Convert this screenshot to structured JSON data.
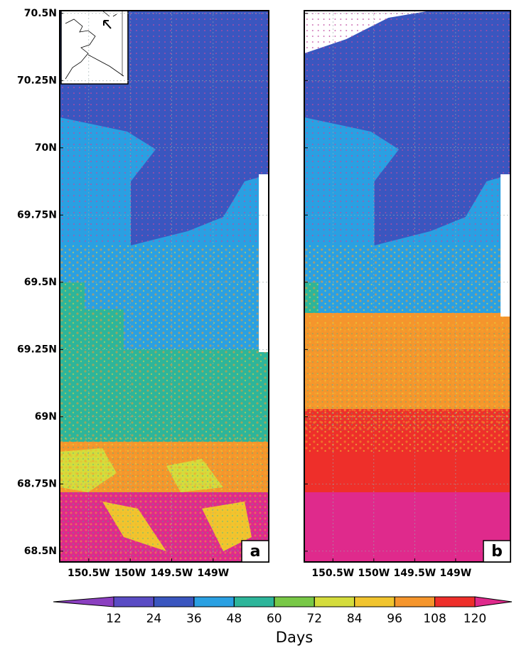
{
  "figure": {
    "ylim": [
      68.46,
      70.51
    ],
    "yticks": [
      {
        "value": 70.5,
        "label": "70.5N"
      },
      {
        "value": 70.25,
        "label": "70.25N"
      },
      {
        "value": 70,
        "label": "70N"
      },
      {
        "value": 69.75,
        "label": "69.75N"
      },
      {
        "value": 69.5,
        "label": "69.5N"
      },
      {
        "value": 69.25,
        "label": "69.25N"
      },
      {
        "value": 69,
        "label": "69N"
      },
      {
        "value": 68.75,
        "label": "68.75N"
      },
      {
        "value": 68.5,
        "label": "68.5N"
      }
    ],
    "xlim": [
      -150.85,
      -148.33
    ],
    "xticks": [
      {
        "value": -150.5,
        "label": "150.5W"
      },
      {
        "value": -150,
        "label": "150W"
      },
      {
        "value": -149.5,
        "label": "149.5W"
      },
      {
        "value": -149,
        "label": "149W"
      }
    ],
    "panels": [
      {
        "label": "a"
      },
      {
        "label": "b"
      }
    ],
    "colorbar": {
      "ticks": [
        12,
        24,
        36,
        48,
        60,
        72,
        84,
        96,
        108,
        120
      ],
      "colors": [
        "#8b3fc0",
        "#5a4cc4",
        "#3a56bf",
        "#2aa0e2",
        "#2db59a",
        "#78c846",
        "#d4dc3c",
        "#f1c42e",
        "#f5952c",
        "#ee2f2a",
        "#df2a8c"
      ],
      "label": "Days"
    }
  }
}
